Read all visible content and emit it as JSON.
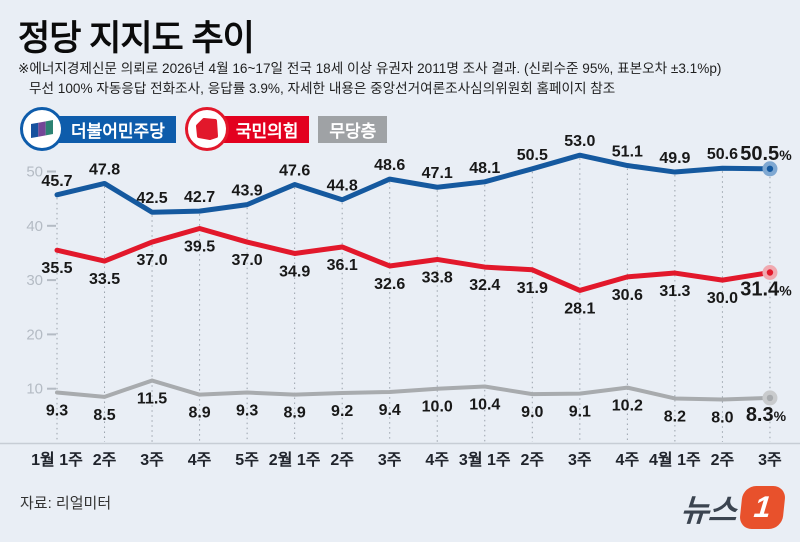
{
  "header": {
    "title": "정당 지지도 추이",
    "note_line1": "※에너지경제신문 의뢰로 2026년 4월 16~17일 전국 18세 이상 유권자 2011명 조사 결과. (신뢰수준 95%, 표본오차 ±3.1%p)",
    "note_line2": "무선 100% 자동응답 전화조사, 응답률 3.9%, 자세한 내용은 중앙선거여론조사심의위원회 홈페이지 참조"
  },
  "legend": {
    "items": [
      {
        "label": "더불어민주당",
        "color": "#0e5cab",
        "logo": "democratic-party-flag"
      },
      {
        "label": "국민의힘",
        "color": "#e3001f",
        "logo": "people-power-party-mark"
      },
      {
        "label": "무당층",
        "color": "#9fa2a5",
        "logo": null
      }
    ]
  },
  "chart_data": {
    "type": "line",
    "title": "정당 지지도 추이",
    "categories": [
      "1월 1주",
      "2주",
      "3주",
      "4주",
      "5주",
      "2월 1주",
      "2주",
      "3주",
      "4주",
      "3월 1주",
      "2주",
      "3주",
      "4주",
      "4월 1주",
      "2주",
      "3주"
    ],
    "series": [
      {
        "name": "더불어민주당",
        "color": "#15599f",
        "halo": "#7fa8d2",
        "values": [
          45.7,
          47.8,
          42.5,
          42.7,
          43.9,
          47.6,
          44.8,
          48.6,
          47.1,
          48.1,
          50.5,
          53.0,
          51.1,
          49.9,
          50.6,
          50.5
        ]
      },
      {
        "name": "국민의힘",
        "color": "#e2182b",
        "halo": "#f0a9b0",
        "values": [
          35.5,
          33.5,
          37.0,
          39.5,
          37.0,
          34.9,
          36.1,
          32.6,
          33.8,
          32.4,
          31.9,
          28.1,
          30.6,
          31.3,
          30.0,
          31.4
        ]
      },
      {
        "name": "무당층",
        "color": "#a8abae",
        "halo": "#c9cbcd",
        "values": [
          9.3,
          8.5,
          11.5,
          8.9,
          9.3,
          8.9,
          9.2,
          9.4,
          10.0,
          10.4,
          9.0,
          9.1,
          10.2,
          8.2,
          8.0,
          8.3
        ]
      }
    ],
    "yticks": [
      10,
      20,
      30,
      40,
      50
    ],
    "ylim": [
      0,
      55
    ],
    "grid": "vertical-dotted",
    "legend_position": "top-left",
    "last_value_suffix": "%"
  },
  "footer": {
    "source": "자료: 리얼미터",
    "brand_text": "뉴스",
    "brand_mark": "1"
  }
}
